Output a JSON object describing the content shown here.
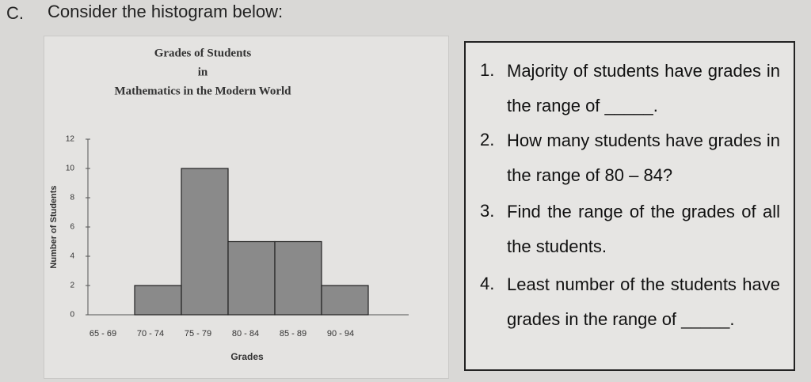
{
  "heading": {
    "letter": "C.",
    "text": "Consider the histogram below:"
  },
  "chart_data": {
    "type": "bar",
    "title": [
      "Grades of Students",
      "in",
      "Mathematics in the Modern World"
    ],
    "x_label": "Grades",
    "y_label": "Number of Students",
    "categories": [
      "65 - 69",
      "70 - 74",
      "75 - 79",
      "80 - 84",
      "85 - 89",
      "90 - 94"
    ],
    "values": [
      0,
      2,
      10,
      5,
      5,
      2
    ],
    "color": "#8a8a8a",
    "ylim": [
      0,
      12
    ],
    "yticks": [
      0,
      2,
      4,
      6,
      8,
      10,
      12
    ],
    "grid": false
  },
  "questions": [
    {
      "number": "1.",
      "text": "Majority of students have grades in the range of _____."
    },
    {
      "number": "2.",
      "text": "How many students have grades in the range of 80 – 84?"
    },
    {
      "number": "3.",
      "text": "Find the range of the grades of all the students."
    },
    {
      "number": "4.",
      "text": "Least number of the students have grades in the range of _____."
    }
  ]
}
